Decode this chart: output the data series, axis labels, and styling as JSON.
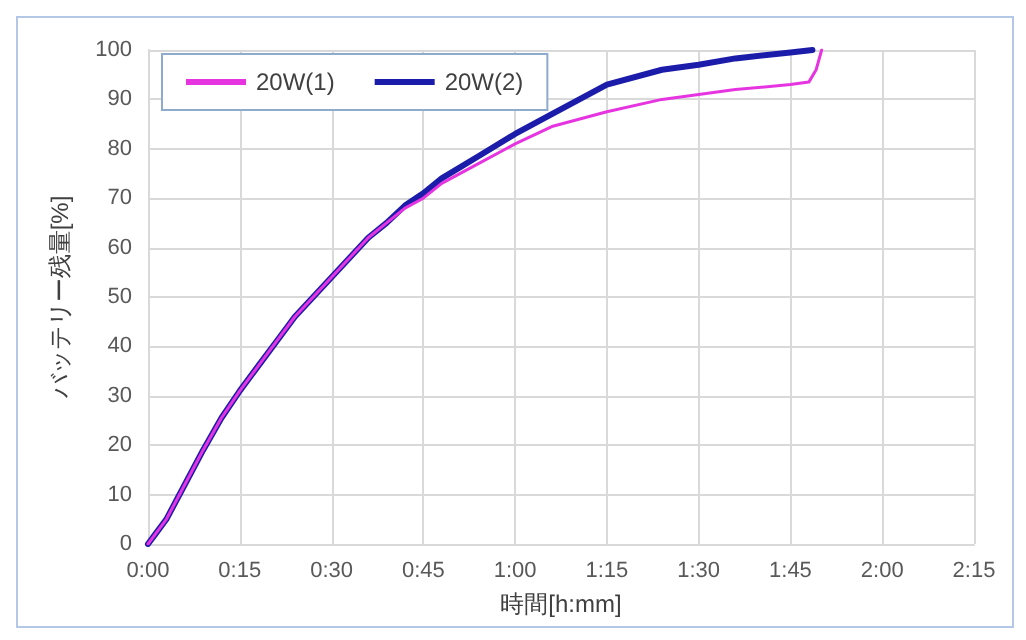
{
  "chart_data": {
    "type": "line",
    "xlabel": "時間[h:mm]",
    "ylabel": "バッテリー残量[%]",
    "series": [
      {
        "name": "20W(1)",
        "color": "#e635e0",
        "x": [
          0,
          0.02,
          0.05,
          0.1,
          0.15,
          0.2,
          0.25,
          0.3,
          0.35,
          0.4,
          0.45,
          0.5,
          0.55,
          0.6,
          0.65,
          0.7,
          0.75,
          0.8,
          0.9,
          1.0,
          1.1,
          1.25,
          1.4,
          1.5,
          1.6,
          1.75,
          1.8,
          1.82,
          1.835
        ],
        "values": [
          0,
          2,
          5,
          12,
          19,
          25.5,
          31,
          36,
          41,
          46,
          50,
          54,
          58,
          62,
          65,
          68,
          70,
          73,
          77,
          81,
          84.5,
          87.5,
          90,
          91,
          92,
          93,
          93.5,
          96,
          100
        ]
      },
      {
        "name": "20W(2)",
        "color": "#1c1caa",
        "x": [
          0,
          0.02,
          0.05,
          0.1,
          0.15,
          0.2,
          0.25,
          0.3,
          0.35,
          0.4,
          0.45,
          0.5,
          0.55,
          0.6,
          0.65,
          0.7,
          0.75,
          0.8,
          0.9,
          1.0,
          1.1,
          1.25,
          1.4,
          1.5,
          1.6,
          1.75,
          1.81
        ],
        "values": [
          0,
          2,
          5,
          12,
          19,
          25.5,
          31,
          36,
          41,
          46,
          50,
          54,
          58,
          62,
          65,
          68.5,
          71,
          74,
          78.5,
          83,
          87,
          93,
          96,
          97,
          98.3,
          99.5,
          100
        ]
      }
    ],
    "xlim": [
      0,
      2.25
    ],
    "xticks": [
      {
        "value": 0,
        "label": "0:00"
      },
      {
        "value": 0.25,
        "label": "0:15"
      },
      {
        "value": 0.5,
        "label": "0:30"
      },
      {
        "value": 0.75,
        "label": "0:45"
      },
      {
        "value": 1,
        "label": "1:00"
      },
      {
        "value": 1.25,
        "label": "1:15"
      },
      {
        "value": 1.5,
        "label": "1:30"
      },
      {
        "value": 1.75,
        "label": "1:45"
      },
      {
        "value": 2,
        "label": "2:00"
      },
      {
        "value": 2.25,
        "label": "2:15"
      }
    ],
    "ylim": [
      0,
      100
    ],
    "yticks": [
      0,
      10,
      20,
      30,
      40,
      50,
      60,
      70,
      80,
      90,
      100
    ],
    "grid": true,
    "legend": "top left",
    "marker": "none",
    "line_style": "solid"
  }
}
